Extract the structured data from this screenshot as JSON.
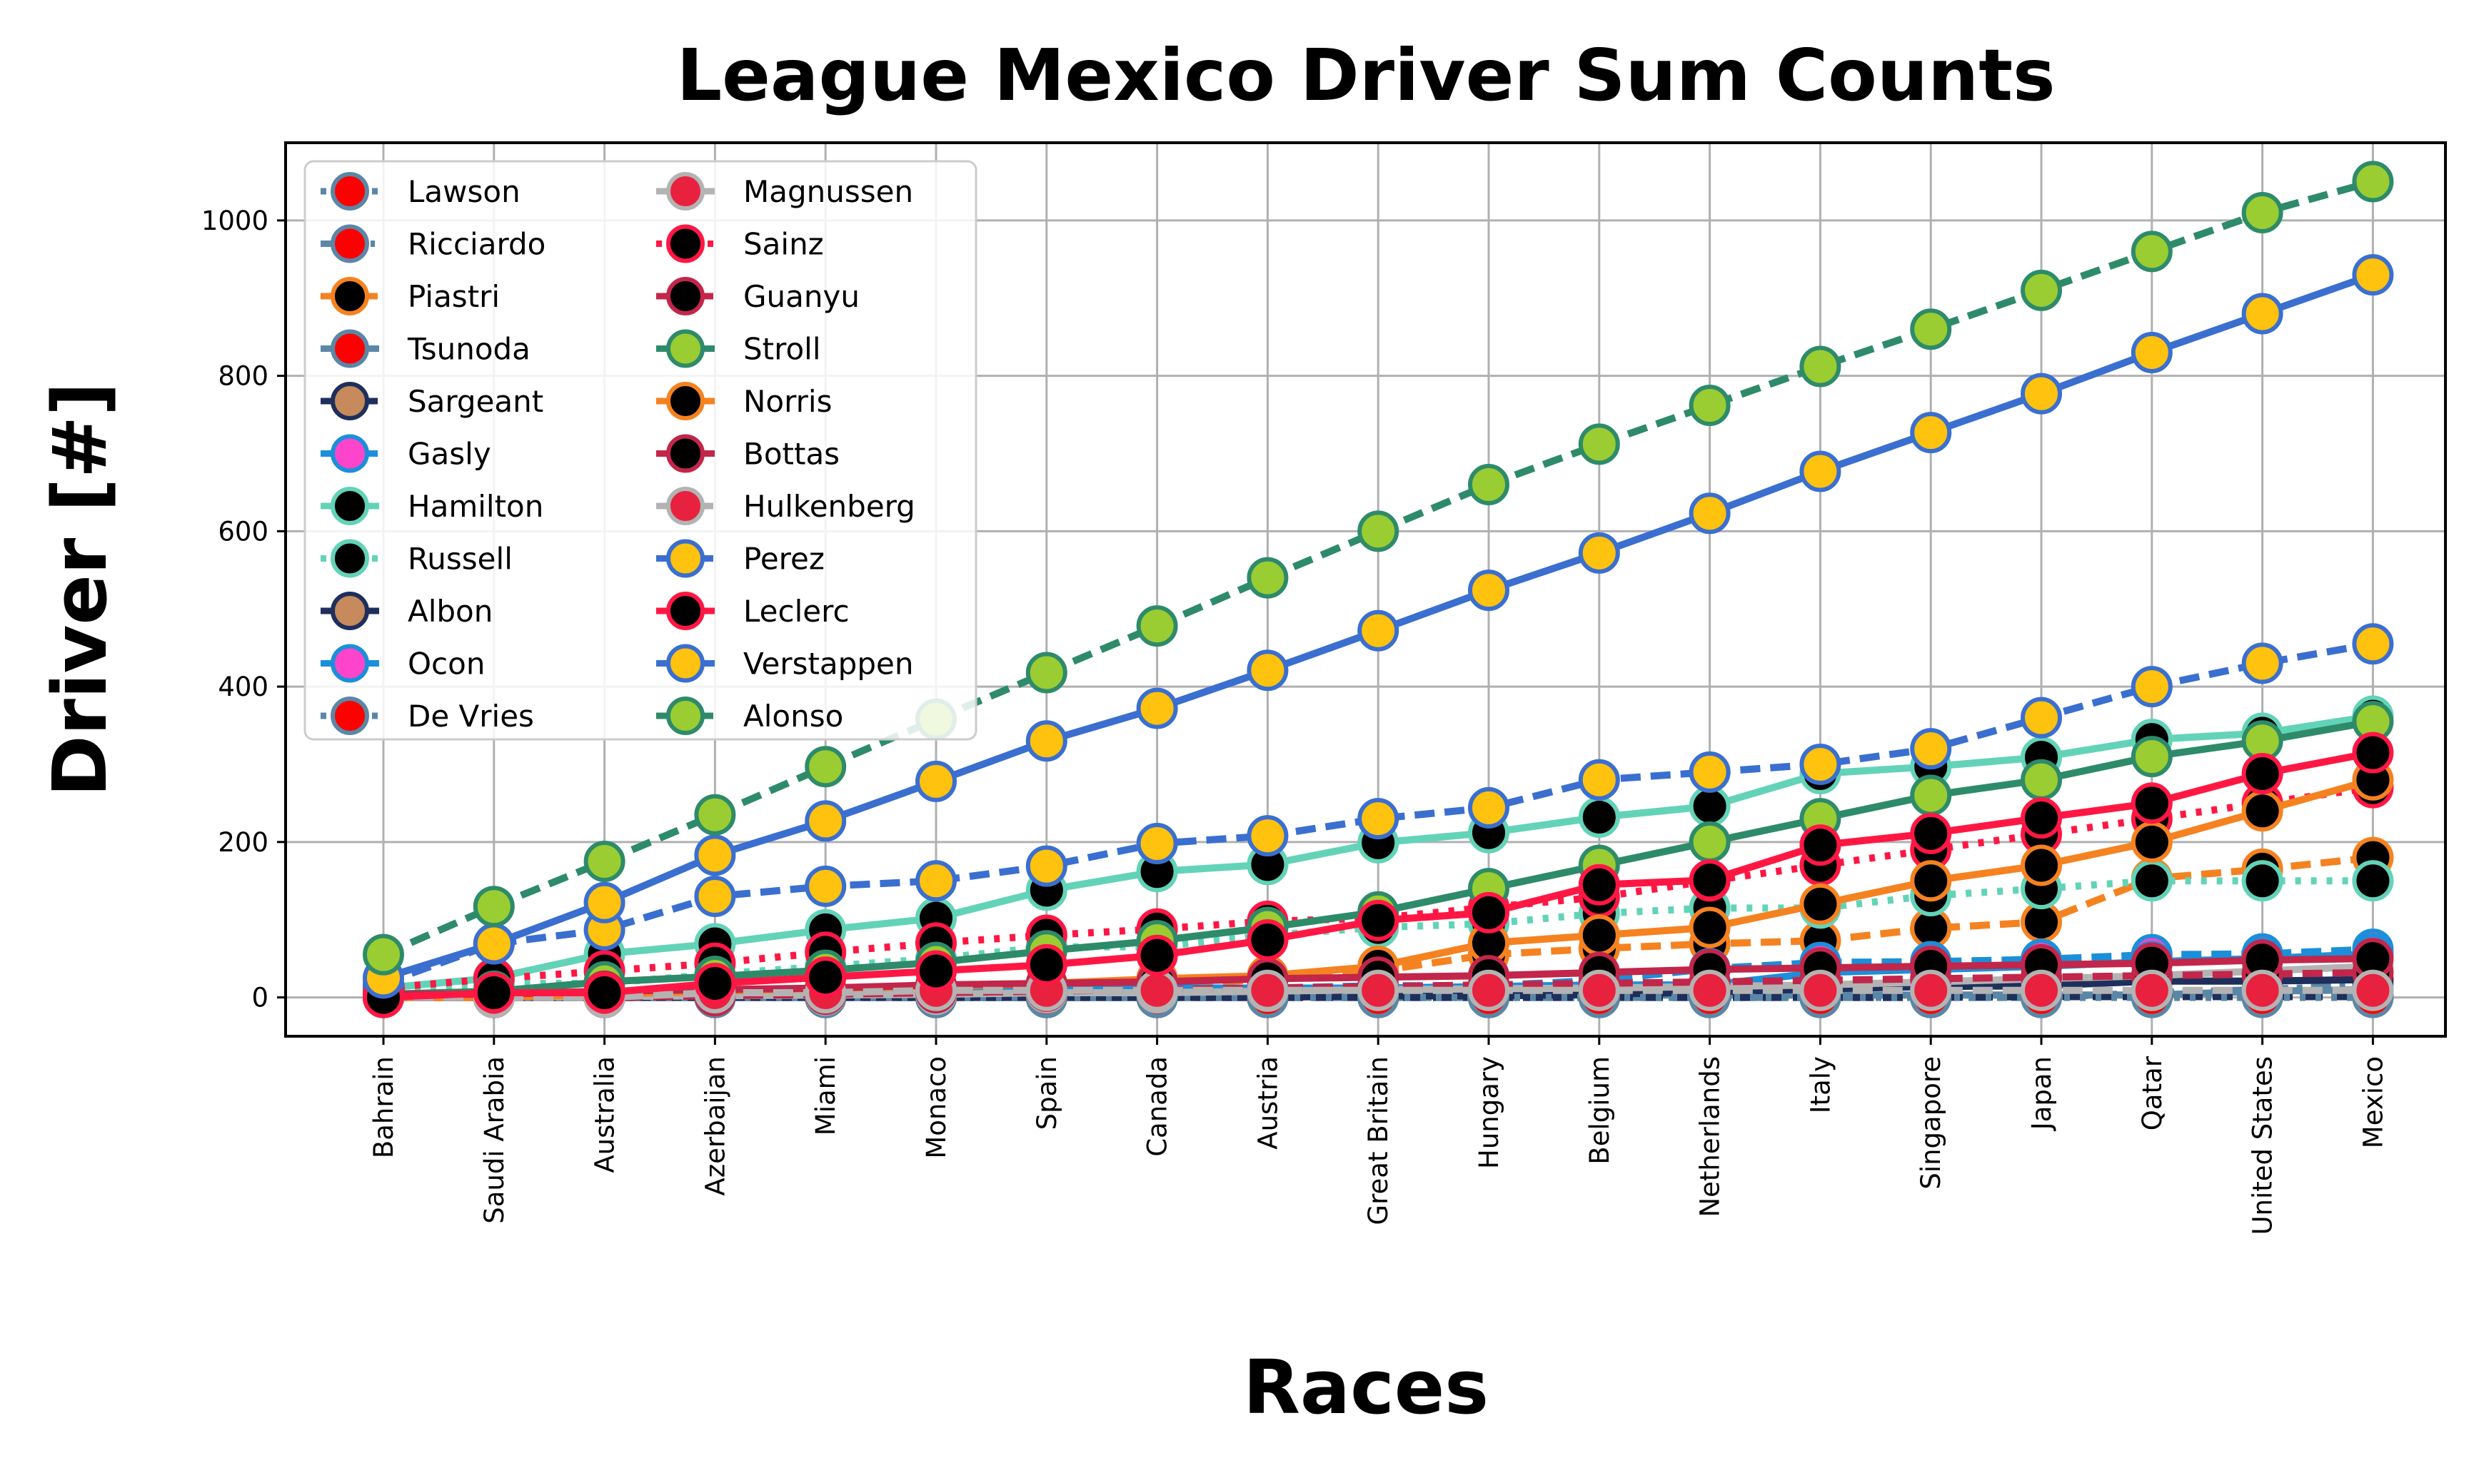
{
  "chart_data": {
    "type": "line",
    "title": "League Mexico Driver Sum Counts",
    "xlabel": "Races",
    "ylabel": "Driver [#]",
    "categories": [
      "Bahrain",
      "Saudi Arabia",
      "Australia",
      "Azerbaijan",
      "Miami",
      "Monaco",
      "Spain",
      "Canada",
      "Austria",
      "Great Britain",
      "Hungary",
      "Belgium",
      "Netherlands",
      "Italy",
      "Singapore",
      "Japan",
      "Qatar",
      "United States",
      "Mexico"
    ],
    "ylim": [
      -50,
      1100
    ],
    "yticks": [
      0,
      200,
      400,
      600,
      800,
      1000
    ],
    "grid": true,
    "legend": {
      "position": "top-left",
      "columns": 2
    },
    "series": [
      {
        "name": "Lawson",
        "color": "#5b87a6",
        "dash": "dot",
        "marker": "#ff0000",
        "markerEdge": "#5b87a6",
        "values": [
          0,
          0,
          0,
          0,
          0,
          0,
          0,
          0,
          0,
          0,
          0,
          0,
          0,
          0,
          2,
          2,
          2,
          2,
          2
        ]
      },
      {
        "name": "Ricciardo",
        "color": "#5b87a6",
        "dash": "dashdot",
        "marker": "#ff0000",
        "markerEdge": "#5b87a6",
        "values": [
          0,
          0,
          0,
          0,
          0,
          0,
          0,
          0,
          0,
          0,
          0,
          0,
          0,
          0,
          0,
          0,
          6,
          10,
          16
        ]
      },
      {
        "name": "Piastri",
        "color": "#f58220",
        "dash": "dash",
        "marker": "#000000",
        "markerEdge": "#f58220",
        "values": [
          0,
          0,
          4,
          4,
          8,
          9,
          12,
          17,
          23,
          34,
          55,
          63,
          69,
          73,
          89,
          97,
          153,
          165,
          180
        ]
      },
      {
        "name": "Tsunoda",
        "color": "#5b87a6",
        "dash": "solid",
        "marker": "#ff0000",
        "markerEdge": "#5b87a6",
        "values": [
          0,
          0,
          2,
          2,
          2,
          2,
          2,
          2,
          2,
          2,
          2,
          3,
          3,
          3,
          3,
          3,
          3,
          8,
          10
        ]
      },
      {
        "name": "Sargeant",
        "color": "#1e2f5c",
        "dash": "dash",
        "marker": "#c68a5c",
        "markerEdge": "#1e2f5c",
        "values": [
          0,
          0,
          0,
          0,
          0,
          0,
          0,
          0,
          0,
          0,
          0,
          0,
          0,
          0,
          0,
          1,
          1,
          1,
          1
        ]
      },
      {
        "name": "Gasly",
        "color": "#1b8fd9",
        "dash": "dash",
        "marker": "#ff44cc",
        "markerEdge": "#1b8fd9",
        "values": [
          0,
          0,
          8,
          8,
          8,
          8,
          12,
          12,
          12,
          15,
          15,
          22,
          37,
          45,
          46,
          49,
          55,
          56,
          62
        ]
      },
      {
        "name": "Hamilton",
        "color": "#63d3b8",
        "dash": "solid",
        "marker": "#000000",
        "markerEdge": "#63d3b8",
        "values": [
          12,
          25,
          56,
          69,
          87,
          102,
          138,
          162,
          171,
          199,
          212,
          232,
          246,
          288,
          297,
          309,
          332,
          340,
          362
        ]
      },
      {
        "name": "Russell",
        "color": "#63d3b8",
        "dash": "dot",
        "marker": "#000000",
        "markerEdge": "#63d3b8",
        "values": [
          8,
          18,
          18,
          30,
          40,
          50,
          65,
          65,
          80,
          90,
          95,
          108,
          115,
          115,
          131,
          140,
          150,
          150,
          150
        ]
      },
      {
        "name": "Albon",
        "color": "#1e2f5c",
        "dash": "solid",
        "marker": "#c68a5c",
        "markerEdge": "#1e2f5c",
        "values": [
          0,
          0,
          0,
          0,
          0,
          0,
          0,
          0,
          0,
          2,
          2,
          4,
          7,
          11,
          14,
          15,
          21,
          21,
          23
        ]
      },
      {
        "name": "Ocon",
        "color": "#1b8fd9",
        "dash": "solid",
        "marker": "#ff44cc",
        "markerEdge": "#1b8fd9",
        "values": [
          0,
          4,
          4,
          4,
          4,
          4,
          12,
          12,
          12,
          12,
          14,
          16,
          16,
          32,
          36,
          40,
          46,
          50,
          56
        ]
      },
      {
        "name": "De Vries",
        "color": "#5b87a6",
        "dash": "dot",
        "marker": "#ff0000",
        "markerEdge": "#5b87a6",
        "values": [
          0,
          0,
          0,
          0,
          0,
          0,
          0,
          0,
          0,
          0,
          0,
          0,
          0,
          0,
          0,
          0,
          0,
          0,
          0
        ]
      },
      {
        "name": "Magnussen",
        "color": "#b3b3b3",
        "dash": "solid",
        "marker": "#e8213f",
        "markerEdge": "#b3b3b3",
        "values": [
          0,
          1,
          1,
          2,
          3,
          4,
          6,
          6,
          8,
          10,
          11,
          12,
          14,
          16,
          20,
          24,
          28,
          34,
          40
        ]
      },
      {
        "name": "Sainz",
        "color": "#ff1744",
        "dash": "dot",
        "marker": "#000000",
        "markerEdge": "#ff1744",
        "values": [
          12,
          24,
          34,
          44,
          58,
          70,
          80,
          88,
          98,
          102,
          116,
          129,
          150,
          170,
          190,
          210,
          230,
          250,
          270
        ]
      },
      {
        "name": "Guanyu",
        "color": "#c2264a",
        "dash": "dash",
        "marker": "#000000",
        "markerEdge": "#c2264a",
        "values": [
          0,
          0,
          0,
          2,
          4,
          6,
          8,
          10,
          12,
          14,
          16,
          18,
          20,
          22,
          24,
          26,
          28,
          30,
          32
        ]
      },
      {
        "name": "Stroll",
        "color": "#2e8b6a",
        "dash": "solid",
        "marker": "#9acd32",
        "markerEdge": "#2e8b6a",
        "values": [
          4,
          8,
          20,
          27,
          35,
          45,
          60,
          73,
          90,
          110,
          140,
          170,
          200,
          230,
          260,
          280,
          310,
          330,
          355
        ]
      },
      {
        "name": "Norris",
        "color": "#f58220",
        "dash": "solid",
        "marker": "#000000",
        "markerEdge": "#f58220",
        "values": [
          0,
          0,
          4,
          8,
          12,
          14,
          18,
          24,
          28,
          40,
          70,
          80,
          90,
          120,
          150,
          170,
          200,
          240,
          280
        ]
      },
      {
        "name": "Bottas",
        "color": "#c2264a",
        "dash": "solid",
        "marker": "#000000",
        "markerEdge": "#c2264a",
        "values": [
          4,
          4,
          8,
          10,
          12,
          16,
          18,
          20,
          24,
          26,
          28,
          32,
          36,
          38,
          40,
          42,
          44,
          48,
          50
        ]
      },
      {
        "name": "Hulkenberg",
        "color": "#b3b3b3",
        "dash": "dash",
        "marker": "#e8213f",
        "markerEdge": "#b3b3b3",
        "values": [
          0,
          0,
          0,
          6,
          6,
          9,
          9,
          9,
          9,
          9,
          9,
          9,
          9,
          9,
          9,
          9,
          9,
          9,
          9
        ]
      },
      {
        "name": "Perez",
        "color": "#3a6fd0",
        "dash": "dash",
        "marker": "#ffc20e",
        "markerEdge": "#3a6fd0",
        "values": [
          18,
          69,
          87,
          130,
          143,
          150,
          169,
          198,
          208,
          230,
          244,
          280,
          290,
          300,
          320,
          360,
          400,
          430,
          455
        ]
      },
      {
        "name": "Leclerc",
        "color": "#ff1744",
        "dash": "solid",
        "marker": "#000000",
        "markerEdge": "#ff1744",
        "values": [
          0,
          6,
          6,
          18,
          26,
          34,
          42,
          54,
          74,
          99,
          109,
          145,
          151,
          196,
          211,
          231,
          250,
          288,
          315
        ]
      },
      {
        "name": "Verstappen",
        "color": "#3a6fd0",
        "dash": "solid",
        "marker": "#ffc20e",
        "markerEdge": "#3a6fd0",
        "values": [
          25,
          69,
          122,
          183,
          227,
          278,
          330,
          372,
          421,
          472,
          524,
          572,
          623,
          677,
          727,
          777,
          830,
          880,
          930
        ]
      },
      {
        "name": "Alonso",
        "color": "#2e8b6a",
        "dash": "dash",
        "marker": "#9acd32",
        "markerEdge": "#2e8b6a",
        "values": [
          55,
          117,
          175,
          235,
          297,
          358,
          418,
          478,
          540,
          600,
          660,
          712,
          762,
          812,
          860,
          910,
          960,
          1010,
          1050
        ]
      }
    ]
  }
}
